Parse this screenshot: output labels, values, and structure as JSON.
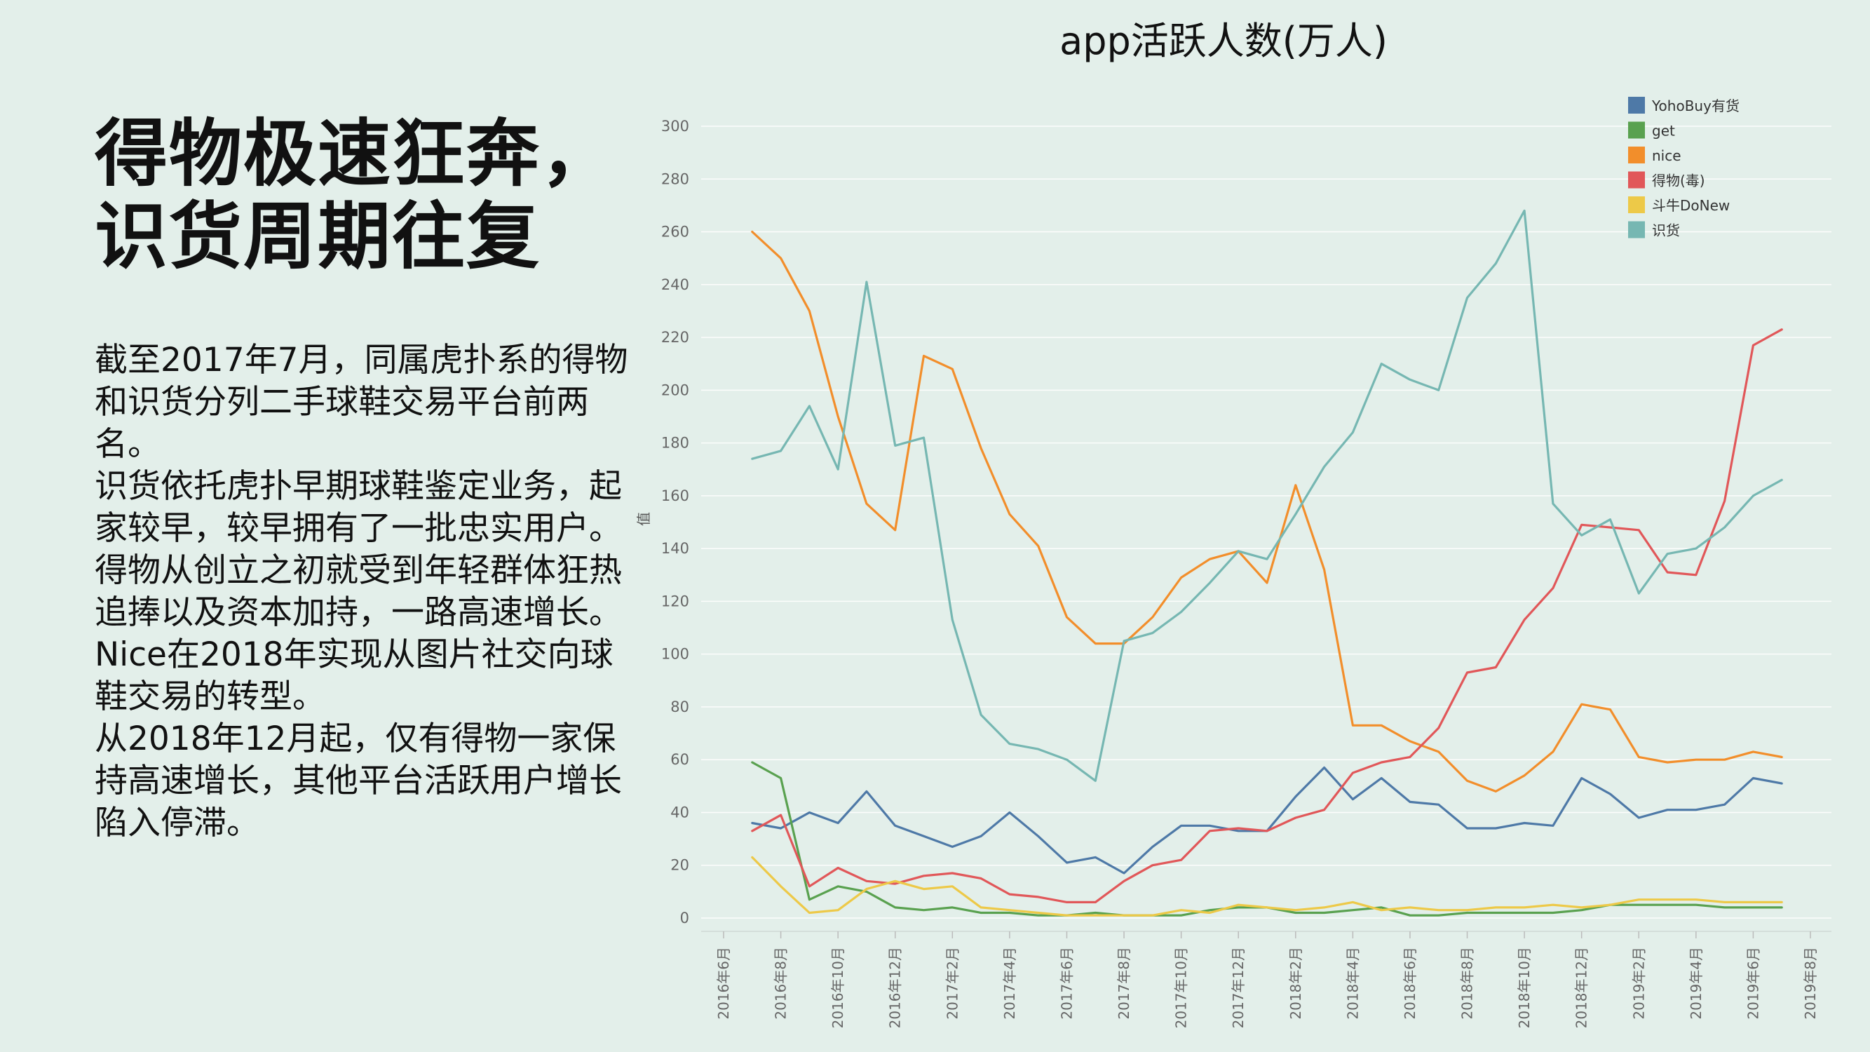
{
  "slide": {
    "title_lines": [
      "得物极速狂奔，",
      "识货周期往复"
    ],
    "body_paragraphs": [
      "截至2017年7月，同属虎扑系的得物和识货分列二手球鞋交易平台前两名。",
      "识货依托虎扑早期球鞋鉴定业务，起家较早，较早拥有了一批忠实用户。得物从创立之初就受到年轻群体狂热追捧以及资本加持，一路高速增长。Nice在2018年实现从图片社交向球鞋交易的转型。",
      "从2018年12月起，仅有得物一家保持高速增长，其他平台活跃用户增长陷入停滞。"
    ]
  },
  "chart_data": {
    "type": "line",
    "title": "app活跃人数(万人)",
    "ylabel": "值",
    "ylim": [
      0,
      300
    ],
    "yticks": [
      0,
      20,
      40,
      60,
      80,
      100,
      120,
      140,
      160,
      180,
      200,
      220,
      240,
      260,
      280,
      300
    ],
    "grid": true,
    "legend_position": "top-right",
    "x_tick_labels": [
      "2016年6月",
      "2016年8月",
      "2016年10月",
      "2016年12月",
      "2017年2月",
      "2017年4月",
      "2017年6月",
      "2017年8月",
      "2017年10月",
      "2017年12月",
      "2018年2月",
      "2018年4月",
      "2018年6月",
      "2018年8月",
      "2018年10月",
      "2018年12月",
      "2019年2月",
      "2019年4月",
      "2019年6月",
      "2019年8月"
    ],
    "x": [
      "2016-07",
      "2016-08",
      "2016-09",
      "2016-10",
      "2016-11",
      "2016-12",
      "2017-01",
      "2017-02",
      "2017-03",
      "2017-04",
      "2017-05",
      "2017-06",
      "2017-07",
      "2017-08",
      "2017-09",
      "2017-10",
      "2017-11",
      "2017-12",
      "2018-01",
      "2018-02",
      "2018-03",
      "2018-04",
      "2018-05",
      "2018-06",
      "2018-07",
      "2018-08",
      "2018-09",
      "2018-10",
      "2018-11",
      "2018-12",
      "2019-01",
      "2019-02",
      "2019-03",
      "2019-04",
      "2019-05",
      "2019-06",
      "2019-07"
    ],
    "series": [
      {
        "name": "YohoBuy有货",
        "color": "#4e79a7",
        "values": [
          36,
          34,
          40,
          36,
          48,
          35,
          31,
          27,
          31,
          40,
          31,
          21,
          23,
          17,
          27,
          35,
          35,
          33,
          33,
          46,
          57,
          45,
          53,
          44,
          43,
          34,
          34,
          36,
          35,
          53,
          47,
          38,
          41,
          41,
          43,
          53,
          51
        ]
      },
      {
        "name": "get",
        "color": "#59a14f",
        "values": [
          59,
          53,
          7,
          12,
          10,
          4,
          3,
          4,
          2,
          2,
          1,
          1,
          2,
          1,
          1,
          1,
          3,
          4,
          4,
          2,
          2,
          3,
          4,
          1,
          1,
          2,
          2,
          2,
          2,
          3,
          5,
          5,
          5,
          5,
          4,
          4,
          4
        ]
      },
      {
        "name": "nice",
        "color": "#f28e2b",
        "values": [
          260,
          250,
          230,
          190,
          157,
          147,
          213,
          208,
          178,
          153,
          141,
          114,
          104,
          104,
          114,
          129,
          136,
          139,
          127,
          164,
          132,
          73,
          73,
          67,
          63,
          52,
          48,
          54,
          63,
          81,
          79,
          61,
          59,
          60,
          60,
          63,
          61
        ]
      },
      {
        "name": "得物(毒)",
        "color": "#e15759",
        "values": [
          33,
          39,
          12,
          19,
          14,
          13,
          16,
          17,
          15,
          9,
          8,
          6,
          6,
          14,
          20,
          22,
          33,
          34,
          33,
          38,
          41,
          55,
          59,
          61,
          72,
          93,
          95,
          113,
          125,
          149,
          148,
          147,
          131,
          130,
          158,
          217,
          223
        ]
      },
      {
        "name": "斗牛DoNew",
        "color": "#edc948",
        "values": [
          23,
          12,
          2,
          3,
          11,
          14,
          11,
          12,
          4,
          3,
          2,
          1,
          1,
          1,
          1,
          3,
          2,
          5,
          4,
          3,
          4,
          6,
          3,
          4,
          3,
          3,
          4,
          4,
          5,
          4,
          5,
          7,
          7,
          7,
          6,
          6,
          6
        ]
      },
      {
        "name": "识货",
        "color": "#76b7b2",
        "values": [
          174,
          177,
          194,
          170,
          241,
          179,
          182,
          113,
          77,
          66,
          64,
          60,
          52,
          105,
          108,
          116,
          127,
          139,
          136,
          153,
          171,
          184,
          210,
          204,
          200,
          235,
          248,
          268,
          157,
          145,
          151,
          123,
          138,
          140,
          148,
          160,
          166
        ]
      }
    ]
  }
}
